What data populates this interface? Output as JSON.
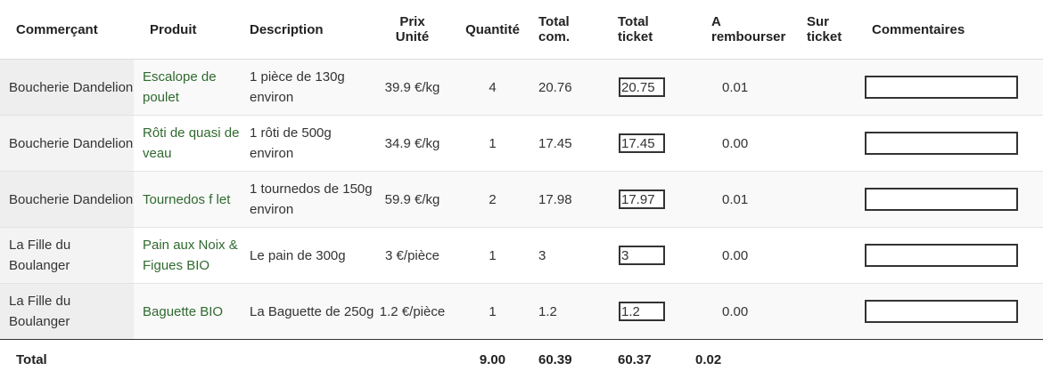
{
  "headers": {
    "merchant": "Commerçant",
    "product": "Produit",
    "description": "Description",
    "unit_price_l1": "Prix",
    "unit_price_l2": "Unité",
    "quantity": "Quantité",
    "total_order_l1": "Total",
    "total_order_l2": "com.",
    "total_ticket_l1": "Total",
    "total_ticket_l2": "ticket",
    "refund_l1": "A",
    "refund_l2": "rembourser",
    "on_ticket_l1": "Sur",
    "on_ticket_l2": "ticket",
    "comments": "Commentaires"
  },
  "rows": [
    {
      "merchant": "Boucherie Dandelion",
      "product": "Escalope de poulet",
      "description": "1 pièce de 130g environ",
      "unit_price": "39.9 €/kg",
      "quantity": "4",
      "total_order": "20.76",
      "ticket_total": "20.75",
      "refund": "0.01",
      "on_ticket": "",
      "comment": ""
    },
    {
      "merchant": "Boucherie Dandelion",
      "product": "Rôti de quasi de veau",
      "description": "1 rôti de 500g environ",
      "unit_price": "34.9 €/kg",
      "quantity": "1",
      "total_order": "17.45",
      "ticket_total": "17.45",
      "refund": "0.00",
      "on_ticket": "",
      "comment": ""
    },
    {
      "merchant": "Boucherie Dandelion",
      "product": "Tournedos f let",
      "description": "1 tournedos de 150g environ",
      "unit_price": "59.9 €/kg",
      "quantity": "2",
      "total_order": "17.98",
      "ticket_total": "17.97",
      "refund": "0.01",
      "on_ticket": "",
      "comment": ""
    },
    {
      "merchant": "La Fille du Boulanger",
      "product": "Pain aux Noix & Figues BIO",
      "description": "Le pain de 300g",
      "unit_price": "3 €/pièce",
      "quantity": "1",
      "total_order": "3",
      "ticket_total": "3",
      "refund": "0.00",
      "on_ticket": "",
      "comment": ""
    },
    {
      "merchant": "La Fille du Boulanger",
      "product": "Baguette BIO",
      "description": "La Baguette de 250g",
      "unit_price": "1.2 €/pièce",
      "quantity": "1",
      "total_order": "1.2",
      "ticket_total": "1.2",
      "refund": "0.00",
      "on_ticket": "",
      "comment": ""
    }
  ],
  "footer": {
    "label": "Total",
    "quantity": "9.00",
    "total_order": "60.39",
    "total_ticket": "60.37",
    "refund": "0.02"
  },
  "colors": {
    "link": "#2f6a2f",
    "merchant_bg": "#eeeeee"
  }
}
